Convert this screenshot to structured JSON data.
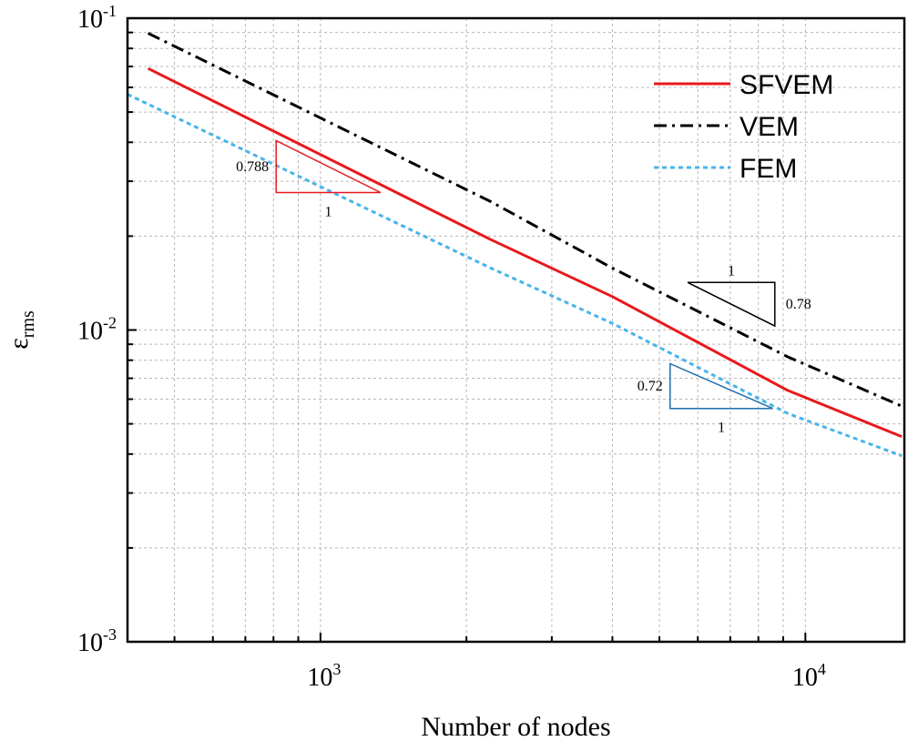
{
  "chart_data": {
    "type": "line",
    "xscale": "log",
    "yscale": "log",
    "xlabel": "Number of nodes",
    "ylabel": {
      "base": "ε",
      "sub": "rms"
    },
    "xlim": [
      400,
      16000
    ],
    "ylim": [
      0.001,
      0.1
    ],
    "xticks": [
      {
        "value": 1000,
        "base": "10",
        "exp": "3"
      },
      {
        "value": 10000,
        "base": "10",
        "exp": "4"
      }
    ],
    "yticks": [
      {
        "value": 0.1,
        "base": "10",
        "exp": "-1"
      },
      {
        "value": 0.01,
        "base": "10",
        "exp": "-2"
      },
      {
        "value": 0.001,
        "base": "10",
        "exp": "-3"
      }
    ],
    "grid": true,
    "legend_position": "top-right",
    "series": [
      {
        "name": "SFVEM",
        "color": "#e8191c",
        "dash": "solid",
        "x": [
          441,
          2245,
          4000,
          9200,
          15800
        ],
        "y": [
          0.069,
          0.0195,
          0.0128,
          0.0064,
          0.00455
        ]
      },
      {
        "name": "VEM",
        "color": "#000000",
        "dash": "dashdot",
        "x": [
          441,
          2245,
          4000,
          9200,
          15800
        ],
        "y": [
          0.0895,
          0.0258,
          0.0158,
          0.0082,
          0.0057
        ]
      },
      {
        "name": "FEM",
        "color": "#47b4ea",
        "dash": "dash",
        "x": [
          400,
          2245,
          4000,
          9200,
          15800
        ],
        "y": [
          0.057,
          0.0158,
          0.0105,
          0.0054,
          0.00395
        ]
      }
    ],
    "slope_triangles": [
      {
        "name": "sfvem",
        "color": "#e8191c",
        "slope_label": "0.788",
        "run_label": "1",
        "orientation": "lower",
        "x1": 810,
        "x2": 1330,
        "y_top": 0.0405,
        "y_bottom": 0.0276
      },
      {
        "name": "vem",
        "color": "#000000",
        "slope_label": "0.78",
        "run_label": "1",
        "orientation": "upper",
        "x1": 5720,
        "x2": 8650,
        "y_top": 0.0142,
        "y_bottom": 0.0103
      },
      {
        "name": "fem",
        "color": "#1e6fb0",
        "slope_label": "0.72",
        "run_label": "1",
        "orientation": "lower",
        "x1": 5260,
        "x2": 8560,
        "y_top": 0.0078,
        "y_bottom": 0.0056
      }
    ]
  }
}
